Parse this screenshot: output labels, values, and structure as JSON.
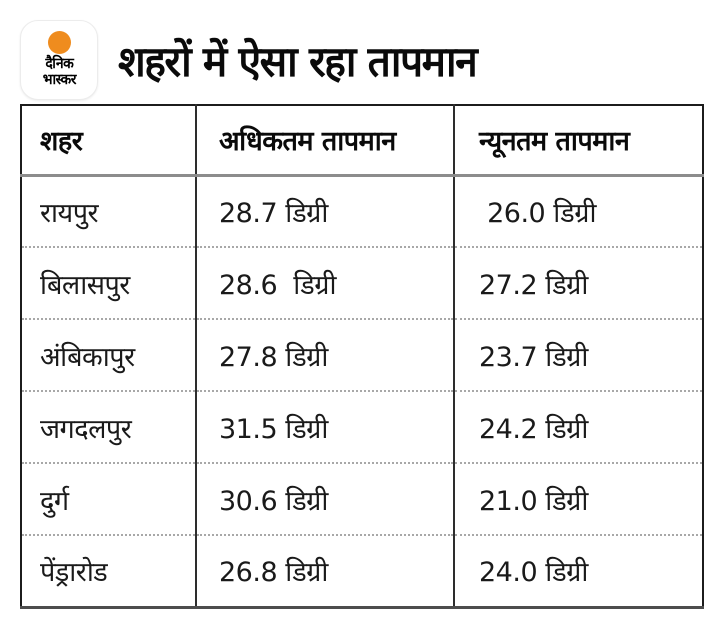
{
  "brand": {
    "name": "dainik-bhaskar",
    "logo_line1": "दैनिक",
    "logo_line2": "भास्कर",
    "logo_dot_color": "#EF8C1E"
  },
  "header": {
    "title": "शहरों में ऐसा रहा तापमान"
  },
  "table": {
    "columns": [
      "शहर",
      "अधिकतम तापमान",
      "न्यूनतम तापमान"
    ],
    "rows": [
      {
        "city": "रायपुर",
        "max": "28.7 डिग्री",
        "min": " 26.0 डिग्री"
      },
      {
        "city": "बिलासपुर",
        "max": "28.6  डिग्री",
        "min": "27.2 डिग्री"
      },
      {
        "city": "अंबिकापुर",
        "max": "27.8 डिग्री",
        "min": "23.7 डिग्री"
      },
      {
        "city": "जगदलपुर",
        "max": "31.5 डिग्री",
        "min": "24.2 डिग्री"
      },
      {
        "city": "दुर्ग",
        "max": "30.6 डिग्री",
        "min": "21.0 डिग्री"
      },
      {
        "city": "पेंड्रारोड",
        "max": "26.8 डिग्री",
        "min": "24.0 डिग्री"
      }
    ]
  },
  "chart_data": {
    "type": "table",
    "title": "शहरों में ऐसा रहा तापमान",
    "columns": [
      "शहर",
      "अधिकतम तापमान",
      "न्यूनतम तापमान"
    ],
    "rows": [
      [
        "रायपुर",
        "28.7 डिग्री",
        "26.0 डिग्री"
      ],
      [
        "बिलासपुर",
        "28.6 डिग्री",
        "27.2 डिग्री"
      ],
      [
        "अंबिकापुर",
        "27.8 डिग्री",
        "23.7 डिग्री"
      ],
      [
        "जगदलपुर",
        "31.5 डिग्री",
        "24.2 डिग्री"
      ],
      [
        "दुर्ग",
        "30.6 डिग्री",
        "21.0 डिग्री"
      ],
      [
        "पेंड्रारोड",
        "26.8 डिग्री",
        "24.0 डिग्री"
      ]
    ],
    "cities": [
      "रायपुर",
      "बिलासपुर",
      "अंबिकापुर",
      "जगदलपुर",
      "दुर्ग",
      "पेंड्रारोड"
    ],
    "max_temps_c": [
      28.7,
      28.6,
      27.8,
      31.5,
      30.6,
      26.8
    ],
    "min_temps_c": [
      26.0,
      27.2,
      23.7,
      24.2,
      21.0,
      24.0
    ],
    "unit": "डिग्री"
  }
}
